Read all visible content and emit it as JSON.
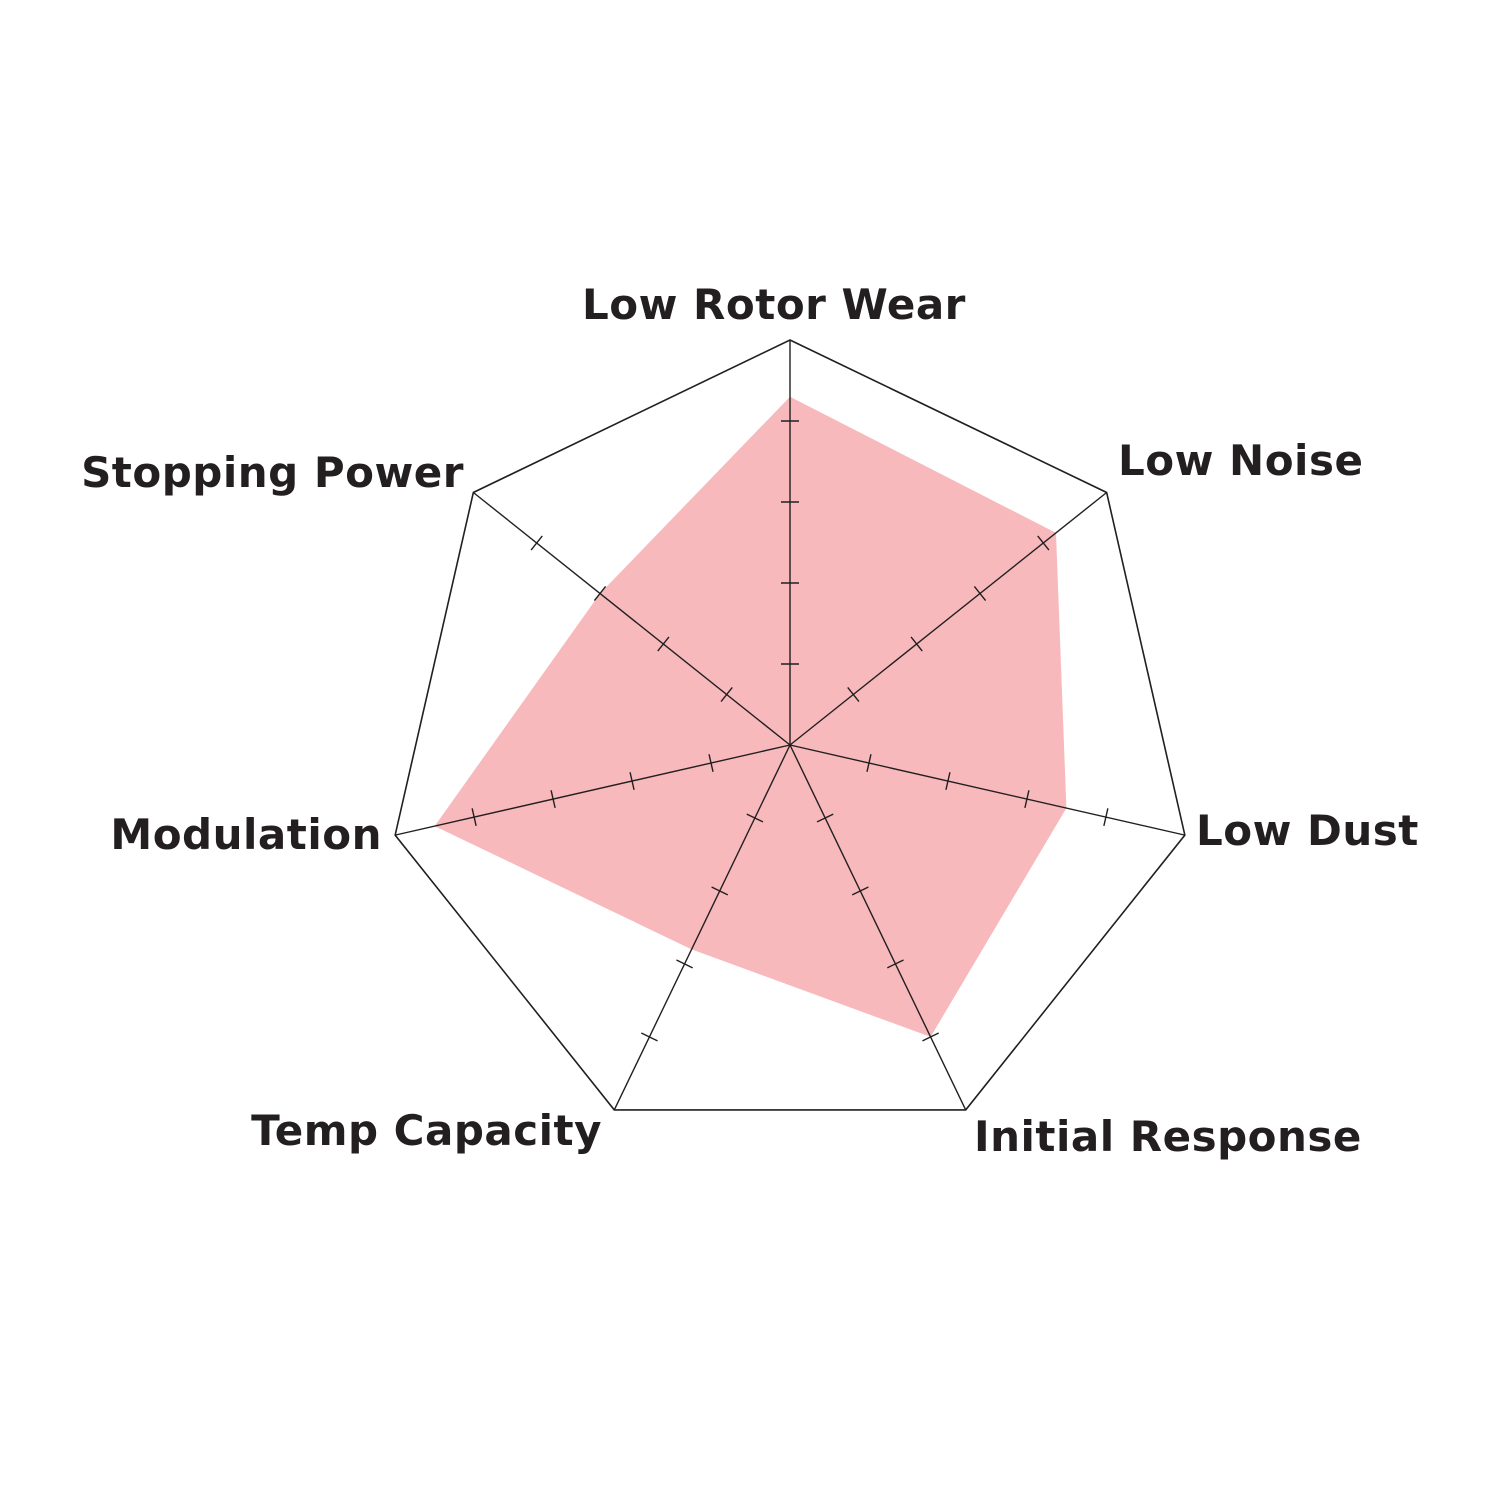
{
  "chart_data": {
    "type": "radar",
    "title": "",
    "axes": [
      "Low Rotor Wear",
      "Low Noise",
      "Low Dust",
      "Initial Response",
      "Temp Capacity",
      "Modulation",
      "Stopping Power"
    ],
    "range": [
      0,
      5
    ],
    "ticks": [
      1,
      2,
      3,
      4
    ],
    "series": [
      {
        "values": [
          4.3,
          4.2,
          3.5,
          4.0,
          2.8,
          4.5,
          3.0
        ],
        "color": "#f7b9bc"
      }
    ],
    "grid_color": "#231f20",
    "label_color": "#231f20"
  }
}
